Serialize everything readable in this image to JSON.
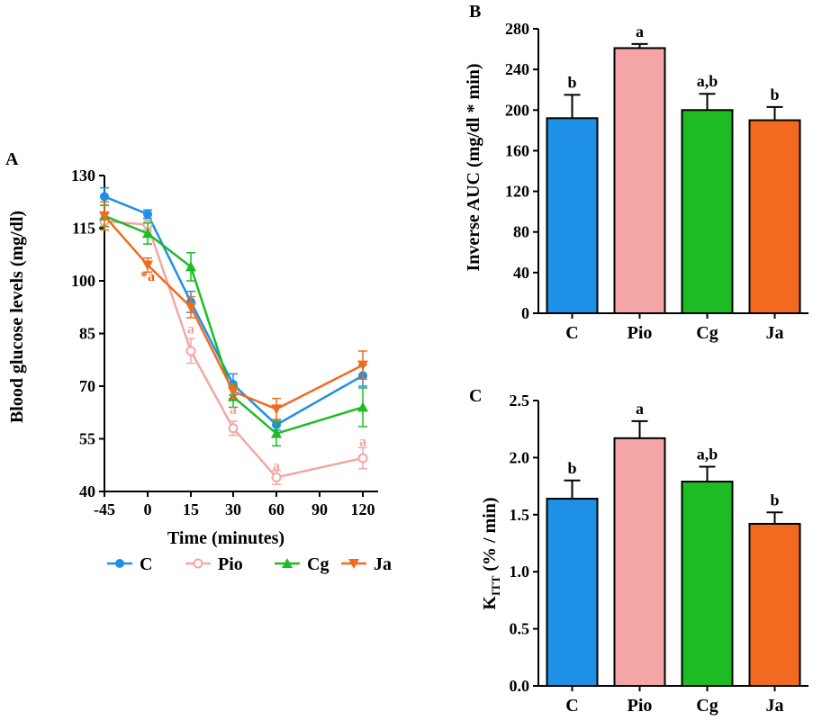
{
  "colors": {
    "C": "#1E90E6",
    "Pio": "#F4A6A6",
    "Cg": "#1DBB24",
    "Ja": "#F26A1F",
    "axis": "#000000",
    "pio_label": "#F0A0A0",
    "ja_label": "#E8601C"
  },
  "chart_data": [
    {
      "panel": "A",
      "type": "line",
      "xlabel": "Time (minutes)",
      "ylabel": "Blood glucose levels (mg/dl)",
      "categories": [
        "-45",
        "0",
        "15",
        "30",
        "60",
        "90",
        "120"
      ],
      "ylim": [
        40,
        130
      ],
      "yticks": [
        "40",
        "55",
        "70",
        "85",
        "100",
        "115",
        "130"
      ],
      "series": [
        {
          "name": "C",
          "marker": "circle",
          "values": [
            124,
            119,
            94,
            70.5,
            59,
            null,
            73
          ],
          "errors": [
            2.5,
            1.2,
            3,
            3,
            1.5,
            null,
            3
          ]
        },
        {
          "name": "Pio",
          "marker": "open-circle",
          "values": [
            117,
            116,
            80,
            58,
            44,
            null,
            49.5
          ],
          "errors": [
            2.5,
            1.5,
            3.5,
            2,
            2,
            null,
            3
          ]
        },
        {
          "name": "Cg",
          "marker": "triangle",
          "values": [
            118.5,
            113.5,
            104,
            67,
            56.5,
            null,
            64
          ],
          "errors": [
            3,
            3,
            4,
            3,
            3.5,
            null,
            5.5
          ]
        },
        {
          "name": "Ja",
          "marker": "triangle-down",
          "values": [
            118.5,
            104.5,
            92.5,
            68.5,
            63.5,
            null,
            76
          ],
          "errors": [
            4,
            2,
            3,
            2,
            3,
            null,
            4
          ]
        }
      ],
      "annotations": [
        {
          "text": "*a",
          "series": "Ja",
          "x": "0",
          "y": 100
        },
        {
          "text": "a",
          "series": "Pio",
          "x": "15",
          "y": 85
        },
        {
          "text": "a",
          "series": "Pio",
          "x": "30",
          "y": 62
        },
        {
          "text": "a",
          "series": "Pio",
          "x": "60",
          "y": 46
        },
        {
          "text": "a",
          "series": "Pio",
          "x": "120",
          "y": 53
        }
      ],
      "legend": [
        "C",
        "Pio",
        "Cg",
        "Ja"
      ]
    },
    {
      "panel": "B",
      "type": "bar",
      "ylabel": "Inverse AUC (mg/dl * min)",
      "categories": [
        "C",
        "Pio",
        "Cg",
        "Ja"
      ],
      "values": [
        192,
        261,
        200,
        190
      ],
      "errors": [
        23,
        4,
        16,
        13
      ],
      "letters": [
        "b",
        "a",
        "a,b",
        "b"
      ],
      "ylim": [
        0,
        280
      ],
      "yticks": [
        "0",
        "40",
        "80",
        "120",
        "160",
        "200",
        "240",
        "280"
      ]
    },
    {
      "panel": "C",
      "type": "bar",
      "ylabel_main": "K",
      "ylabel_sub": "ITT",
      "ylabel_unit": " (% / min)",
      "categories": [
        "C",
        "Pio",
        "Cg",
        "Ja"
      ],
      "values": [
        1.64,
        2.17,
        1.79,
        1.42
      ],
      "errors": [
        0.16,
        0.15,
        0.13,
        0.1
      ],
      "letters": [
        "b",
        "a",
        "a,b",
        "b"
      ],
      "ylim": [
        0,
        2.5
      ],
      "yticks": [
        "0.0",
        "0.5",
        "1.0",
        "1.5",
        "2.0",
        "2.5"
      ]
    }
  ]
}
